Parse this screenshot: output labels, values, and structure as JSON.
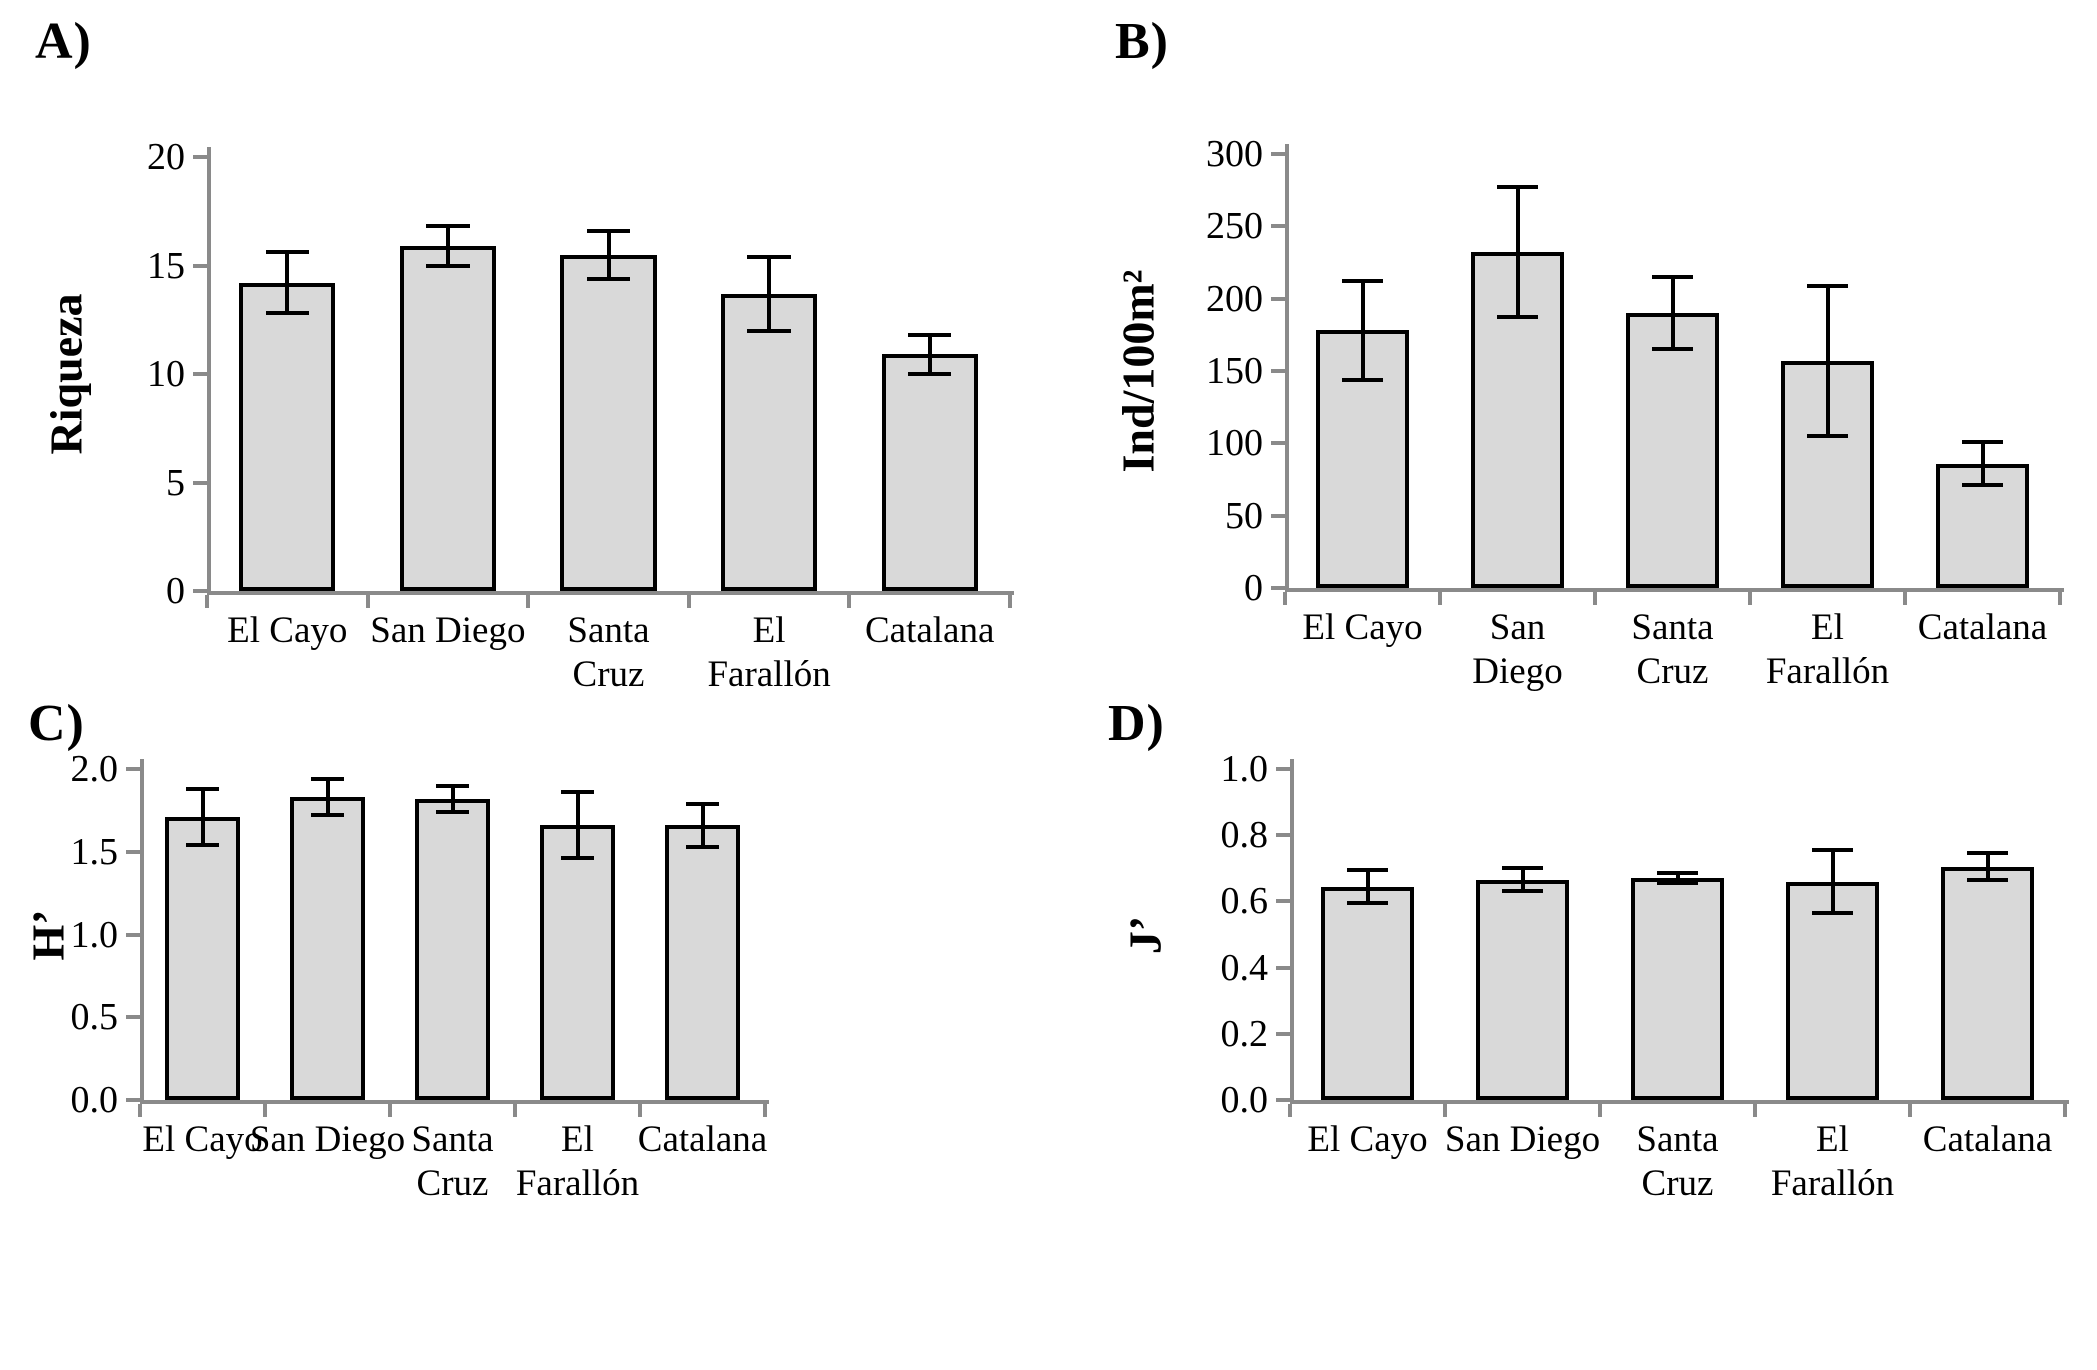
{
  "figure": {
    "background": "#ffffff",
    "bar_fill": "#d9d9d9",
    "bar_border": "#000000",
    "axis_color": "#8a8a8a",
    "error_color": "#000000",
    "text_color": "#000000"
  },
  "chart_data": [
    {
      "type": "bar",
      "panel_letter": "A)",
      "title": "",
      "xlabel": "",
      "ylabel": "Riqueza",
      "categories": [
        "El Cayo",
        "San Diego",
        "Santa Cruz",
        "El Farallón",
        "Catalana"
      ],
      "category_lines": [
        [
          "El Cayo"
        ],
        [
          "San Diego"
        ],
        [
          "Santa",
          "Cruz"
        ],
        [
          "El",
          "Farallón"
        ],
        [
          "Catalana"
        ]
      ],
      "values": [
        14.2,
        15.9,
        15.5,
        13.7,
        10.9
      ],
      "error_bars": [
        1.4,
        0.9,
        1.1,
        1.7,
        0.9
      ],
      "ylim": [
        0,
        20
      ],
      "yticks": [
        0,
        5,
        10,
        15,
        20
      ],
      "ytick_labels_top_to_bottom": [
        "20",
        "15",
        "10",
        "5",
        "0"
      ],
      "grid": false,
      "legend": false
    },
    {
      "type": "bar",
      "panel_letter": "B)",
      "title": "",
      "xlabel": "",
      "ylabel": "Ind/100m²",
      "categories": [
        "El Cayo",
        "San Diego",
        "Santa Cruz",
        "El Farallón",
        "Catalana"
      ],
      "category_lines": [
        [
          "El Cayo"
        ],
        [
          "San",
          "Diego"
        ],
        [
          "Santa",
          "Cruz"
        ],
        [
          "El",
          "Farallón"
        ],
        [
          "Catalana"
        ]
      ],
      "values": [
        178,
        232,
        190,
        157,
        86
      ],
      "error_bars": [
        34,
        45,
        25,
        52,
        15
      ],
      "ylim": [
        0,
        300
      ],
      "yticks": [
        0,
        50,
        100,
        150,
        200,
        250,
        300
      ],
      "ytick_labels_top_to_bottom": [
        "300",
        "250",
        "200",
        "150",
        "100",
        "50",
        "0"
      ],
      "grid": false,
      "legend": false
    },
    {
      "type": "bar",
      "panel_letter": "C)",
      "title": "",
      "xlabel": "",
      "ylabel": "H’",
      "categories": [
        "El Cayo",
        "San Diego",
        "Santa Cruz",
        "El Farallón",
        "Catalana"
      ],
      "category_lines": [
        [
          "El Cayo"
        ],
        [
          "San Diego"
        ],
        [
          "Santa",
          "Cruz"
        ],
        [
          "El",
          "Farallón"
        ],
        [
          "Catalana"
        ]
      ],
      "values": [
        1.71,
        1.83,
        1.82,
        1.66,
        1.66
      ],
      "error_bars": [
        0.17,
        0.11,
        0.08,
        0.2,
        0.13
      ],
      "ylim": [
        0,
        2.0
      ],
      "yticks": [
        0,
        0.5,
        1.0,
        1.5,
        2.0
      ],
      "ytick_labels_top_to_bottom": [
        "2.0",
        "1.5",
        "1.0",
        "0.5",
        "0.0"
      ],
      "grid": false,
      "legend": false
    },
    {
      "type": "bar",
      "panel_letter": "D)",
      "title": "",
      "xlabel": "",
      "ylabel": "J’",
      "categories": [
        "El Cayo",
        "San Diego",
        "Santa Cruz",
        "El Farallón",
        "Catalana"
      ],
      "category_lines": [
        [
          "El Cayo"
        ],
        [
          "San Diego"
        ],
        [
          "Santa",
          "Cruz"
        ],
        [
          "El",
          "Farallón"
        ],
        [
          "Catalana"
        ]
      ],
      "values": [
        0.645,
        0.665,
        0.67,
        0.66,
        0.705
      ],
      "error_bars": [
        0.05,
        0.035,
        0.015,
        0.095,
        0.04
      ],
      "ylim": [
        0,
        1.0
      ],
      "yticks": [
        0,
        0.2,
        0.4,
        0.6,
        0.8,
        1.0
      ],
      "ytick_labels_top_to_bottom": [
        "1.0",
        "0.8",
        "0.6",
        "0.4",
        "0.2",
        "0.0"
      ],
      "grid": false,
      "legend": false
    }
  ]
}
